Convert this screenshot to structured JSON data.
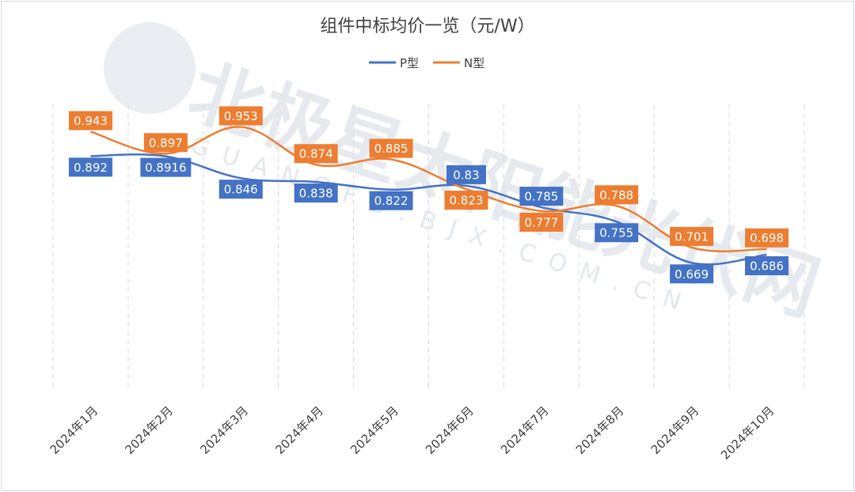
{
  "chart_data": {
    "type": "line",
    "title": "组件中标均价一览（元/W）",
    "categories": [
      "2024年1月",
      "2024年2月",
      "2024年3月",
      "2024年4月",
      "2024年5月",
      "2024年6月",
      "2024年7月",
      "2024年8月",
      "2024年9月",
      "2024年10月"
    ],
    "series": [
      {
        "name": "P型",
        "values": [
          0.892,
          0.8916,
          0.846,
          0.838,
          0.822,
          0.83,
          0.785,
          0.755,
          0.669,
          0.686
        ],
        "labels": [
          "0.892",
          "0.8916",
          "0.846",
          "0.838",
          "0.822",
          "0.83",
          "0.785",
          "0.755",
          "0.669",
          "0.686"
        ],
        "color": "#4472c4"
      },
      {
        "name": "N型",
        "values": [
          0.943,
          0.897,
          0.953,
          0.874,
          0.885,
          0.823,
          0.777,
          0.788,
          0.701,
          0.698
        ],
        "labels": [
          "0.943",
          "0.897",
          "0.953",
          "0.874",
          "0.885",
          "0.823",
          "0.777",
          "0.788",
          "0.701",
          "0.698"
        ],
        "color": "#ed7d31"
      }
    ],
    "ylim": [
      0.4,
      1.0
    ],
    "grid": "vertical dashed",
    "legend_position": "top-center"
  },
  "watermark": {
    "main": "北极星太阳能光伏网",
    "sub": "GUANGFU.BJX.COM.CN"
  }
}
